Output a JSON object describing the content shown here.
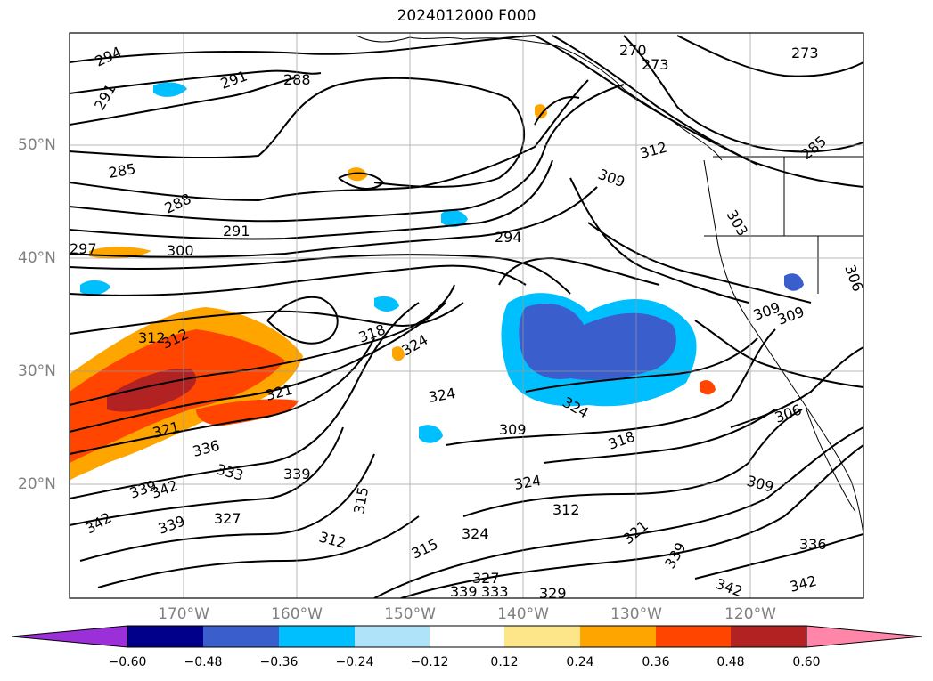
{
  "title": "2024012000 F000",
  "map": {
    "lat_labels": [
      "50°N",
      "40°N",
      "30°N",
      "20°N"
    ],
    "lon_labels": [
      "170°W",
      "160°W",
      "150°W",
      "140°W",
      "130°W",
      "120°W"
    ],
    "contour_labels": [
      "294",
      "291",
      "288",
      "291",
      "285",
      "288",
      "291",
      "297",
      "300",
      "270",
      "273",
      "273",
      "312",
      "309",
      "294",
      "285",
      "303",
      "306",
      "309",
      "309",
      "312",
      "312",
      "318",
      "324",
      "324",
      "324",
      "321",
      "321",
      "336",
      "333",
      "339",
      "342",
      "339",
      "327",
      "342",
      "339",
      "315",
      "312",
      "315",
      "324",
      "312",
      "324",
      "327",
      "333",
      "339",
      "329",
      "321",
      "318",
      "309",
      "306",
      "309",
      "339",
      "336",
      "342",
      "342"
    ]
  },
  "colorbar": {
    "ticks": [
      "−0.60",
      "−0.48",
      "−0.36",
      "−0.24",
      "−0.12",
      "0.12",
      "0.24",
      "0.36",
      "0.48",
      "0.60"
    ],
    "colors": [
      "#9b30d9",
      "#00008b",
      "#3a5fcd",
      "#00bfff",
      "#aee3f9",
      "#ffffff",
      "#fde68a",
      "#ffa500",
      "#ff4500",
      "#b22222",
      "#ff85a9"
    ]
  }
}
